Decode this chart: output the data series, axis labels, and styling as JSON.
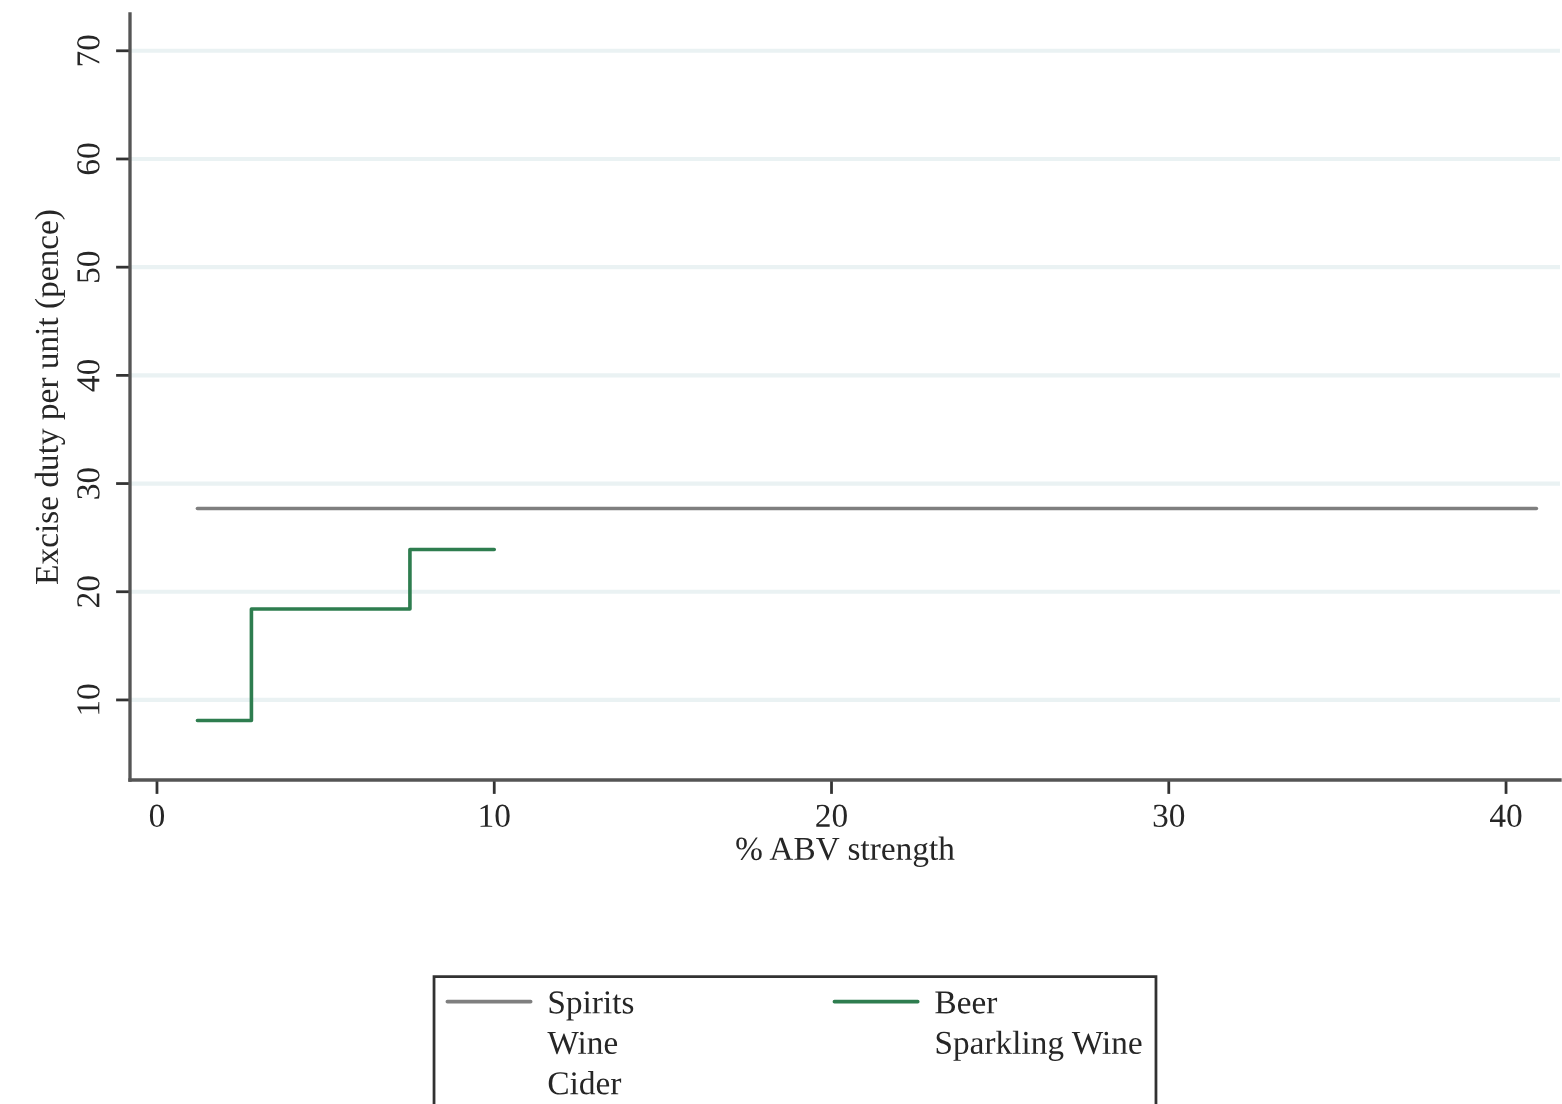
{
  "chart_data": {
    "type": "line",
    "xlabel": "% ABV strength",
    "ylabel": "Excise duty per unit (pence)",
    "xlim": [
      -0.8,
      41.6
    ],
    "ylim": [
      2.6,
      73.4
    ],
    "xticks": [
      0,
      10,
      20,
      30,
      40
    ],
    "yticks": [
      10,
      20,
      30,
      40,
      50,
      60,
      70
    ],
    "grid": "y",
    "legend": "bottom",
    "series": [
      {
        "name": "Spirits",
        "color": "#7f7f7f",
        "x": [
          1.2,
          40.9
        ],
        "values": [
          27.7,
          27.7
        ]
      },
      {
        "name": "Wine"
      },
      {
        "name": "Cider"
      },
      {
        "name": "Beer",
        "color": "#2e7d4f",
        "type": "step",
        "x": [
          1.2,
          2.8,
          7.5,
          10.0
        ],
        "values": [
          8.1,
          18.4,
          23.9,
          23.9
        ]
      },
      {
        "name": "Sparkling Wine"
      }
    ]
  }
}
